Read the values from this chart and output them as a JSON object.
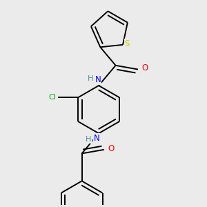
{
  "background_color": "#ebebeb",
  "bond_color": "#000000",
  "atom_colors": {
    "S": "#cccc00",
    "O": "#ff0000",
    "N": "#0000ff",
    "Cl": "#00aa00",
    "C": "#000000",
    "H": "#4a9090"
  },
  "figsize": [
    3.0,
    3.0
  ],
  "dpi": 100
}
